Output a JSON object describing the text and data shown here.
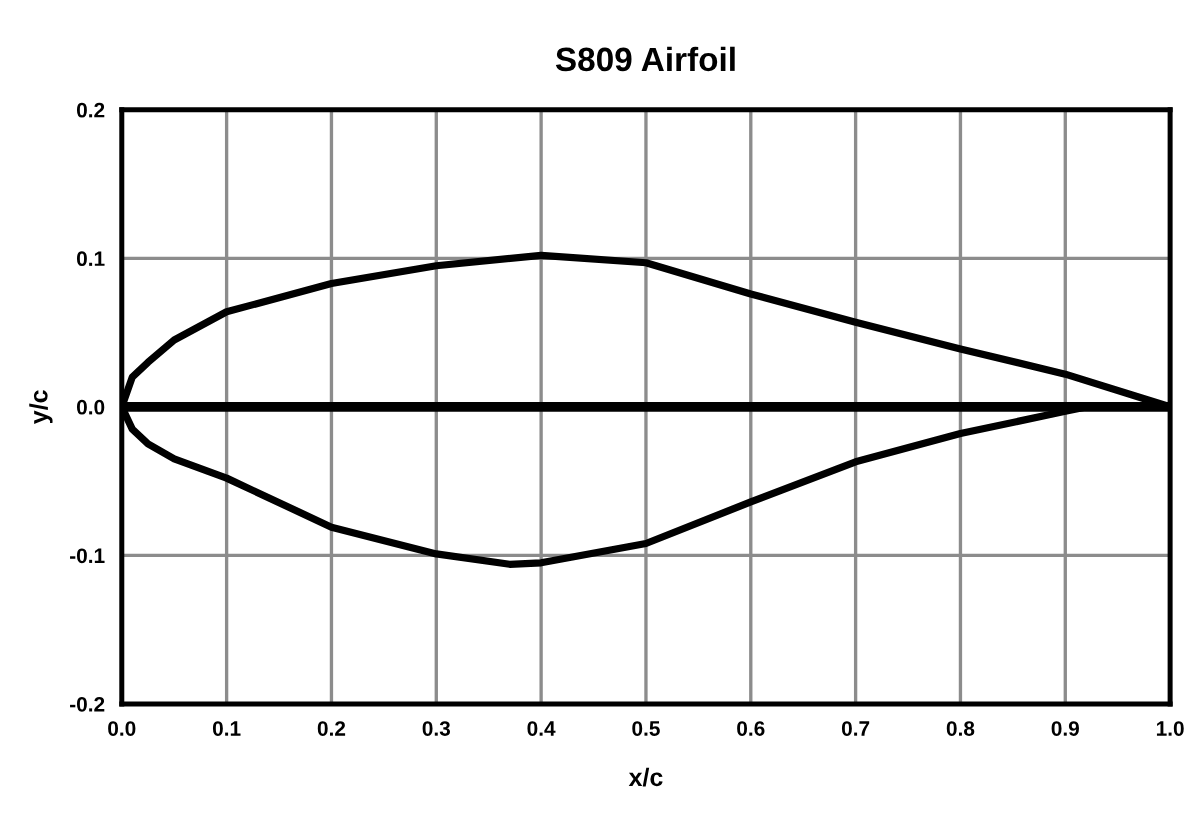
{
  "chart_data": {
    "type": "line",
    "title": "S809 Airfoil",
    "xlabel": "x/c",
    "ylabel": "y/c",
    "series": [
      {
        "color": "#000000",
        "x": [
          0.0,
          0.01,
          0.025,
          0.05,
          0.1,
          0.2,
          0.3,
          0.4,
          0.5,
          0.6,
          0.7,
          0.8,
          0.9,
          1.0
        ],
        "values": [
          0.0,
          0.02,
          0.03,
          0.045,
          0.064,
          0.083,
          0.095,
          0.102,
          0.097,
          0.076,
          0.057,
          0.039,
          0.022,
          0.0
        ]
      },
      {
        "color": "#000000",
        "x": [
          0.0,
          0.01,
          0.025,
          0.05,
          0.1,
          0.2,
          0.3,
          0.37,
          0.4,
          0.5,
          0.6,
          0.7,
          0.8,
          0.9,
          0.92
        ],
        "values": [
          0.0,
          -0.015,
          -0.025,
          -0.035,
          -0.048,
          -0.081,
          -0.099,
          -0.106,
          -0.105,
          -0.092,
          -0.064,
          -0.037,
          -0.018,
          -0.003,
          0.0
        ]
      }
    ],
    "xlim": [
      0.0,
      1.0
    ],
    "ylim": [
      -0.2,
      0.2
    ],
    "xticks": [
      {
        "value": 0.0,
        "label": "0.0"
      },
      0.1,
      0.2,
      0.3,
      0.4,
      0.5,
      0.6,
      0.7,
      0.8,
      0.9,
      {
        "value": 1.0,
        "label": "1.0"
      }
    ],
    "yticks": [
      -0.2,
      -0.1,
      {
        "value": 0.0,
        "label": "0.0"
      },
      0.1,
      0.2
    ],
    "grid": true,
    "marker": "none",
    "line_style": "solid",
    "ref_lines": [
      {
        "axis": "y",
        "value": 0.0,
        "color": "#000000"
      }
    ]
  }
}
